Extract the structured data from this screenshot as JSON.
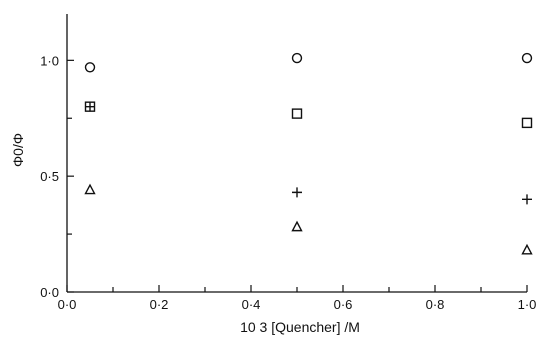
{
  "chart_data": {
    "type": "scatter",
    "title": "",
    "xlabel": "10 3 [Quencher] /M",
    "ylabel": "Φ0/Φ",
    "xlim": [
      0.0,
      1.0
    ],
    "ylim": [
      0.0,
      1.2
    ],
    "xticks": [
      {
        "value": 0.0,
        "label": "0·0"
      },
      {
        "value": 0.2,
        "label": "0·2"
      },
      {
        "value": 0.4,
        "label": "0·4"
      },
      {
        "value": 0.6,
        "label": "0·6"
      },
      {
        "value": 0.8,
        "label": "0·8"
      },
      {
        "value": 1.0,
        "label": "1·0"
      }
    ],
    "x_minor_ticks": [
      0.1,
      0.3,
      0.5,
      0.7,
      0.9
    ],
    "yticks": [
      {
        "value": 0.0,
        "label": "0·0"
      },
      {
        "value": 0.5,
        "label": "0·5"
      },
      {
        "value": 1.0,
        "label": "1·0"
      }
    ],
    "y_minor_ticks": [
      0.25,
      0.75
    ],
    "grid": false,
    "series": [
      {
        "marker": "circle",
        "points": [
          {
            "x": 0.05,
            "y": 0.97
          },
          {
            "x": 0.5,
            "y": 1.01
          },
          {
            "x": 1.0,
            "y": 1.01
          }
        ]
      },
      {
        "marker": "square",
        "points": [
          {
            "x": 0.05,
            "y": 0.8
          },
          {
            "x": 0.5,
            "y": 0.77
          },
          {
            "x": 1.0,
            "y": 0.73
          }
        ]
      },
      {
        "marker": "plus",
        "points": [
          {
            "x": 0.05,
            "y": 0.8
          },
          {
            "x": 0.5,
            "y": 0.43
          },
          {
            "x": 1.0,
            "y": 0.4
          }
        ]
      },
      {
        "marker": "triangle",
        "points": [
          {
            "x": 0.05,
            "y": 0.44
          },
          {
            "x": 0.5,
            "y": 0.28
          },
          {
            "x": 1.0,
            "y": 0.18
          }
        ]
      }
    ]
  }
}
